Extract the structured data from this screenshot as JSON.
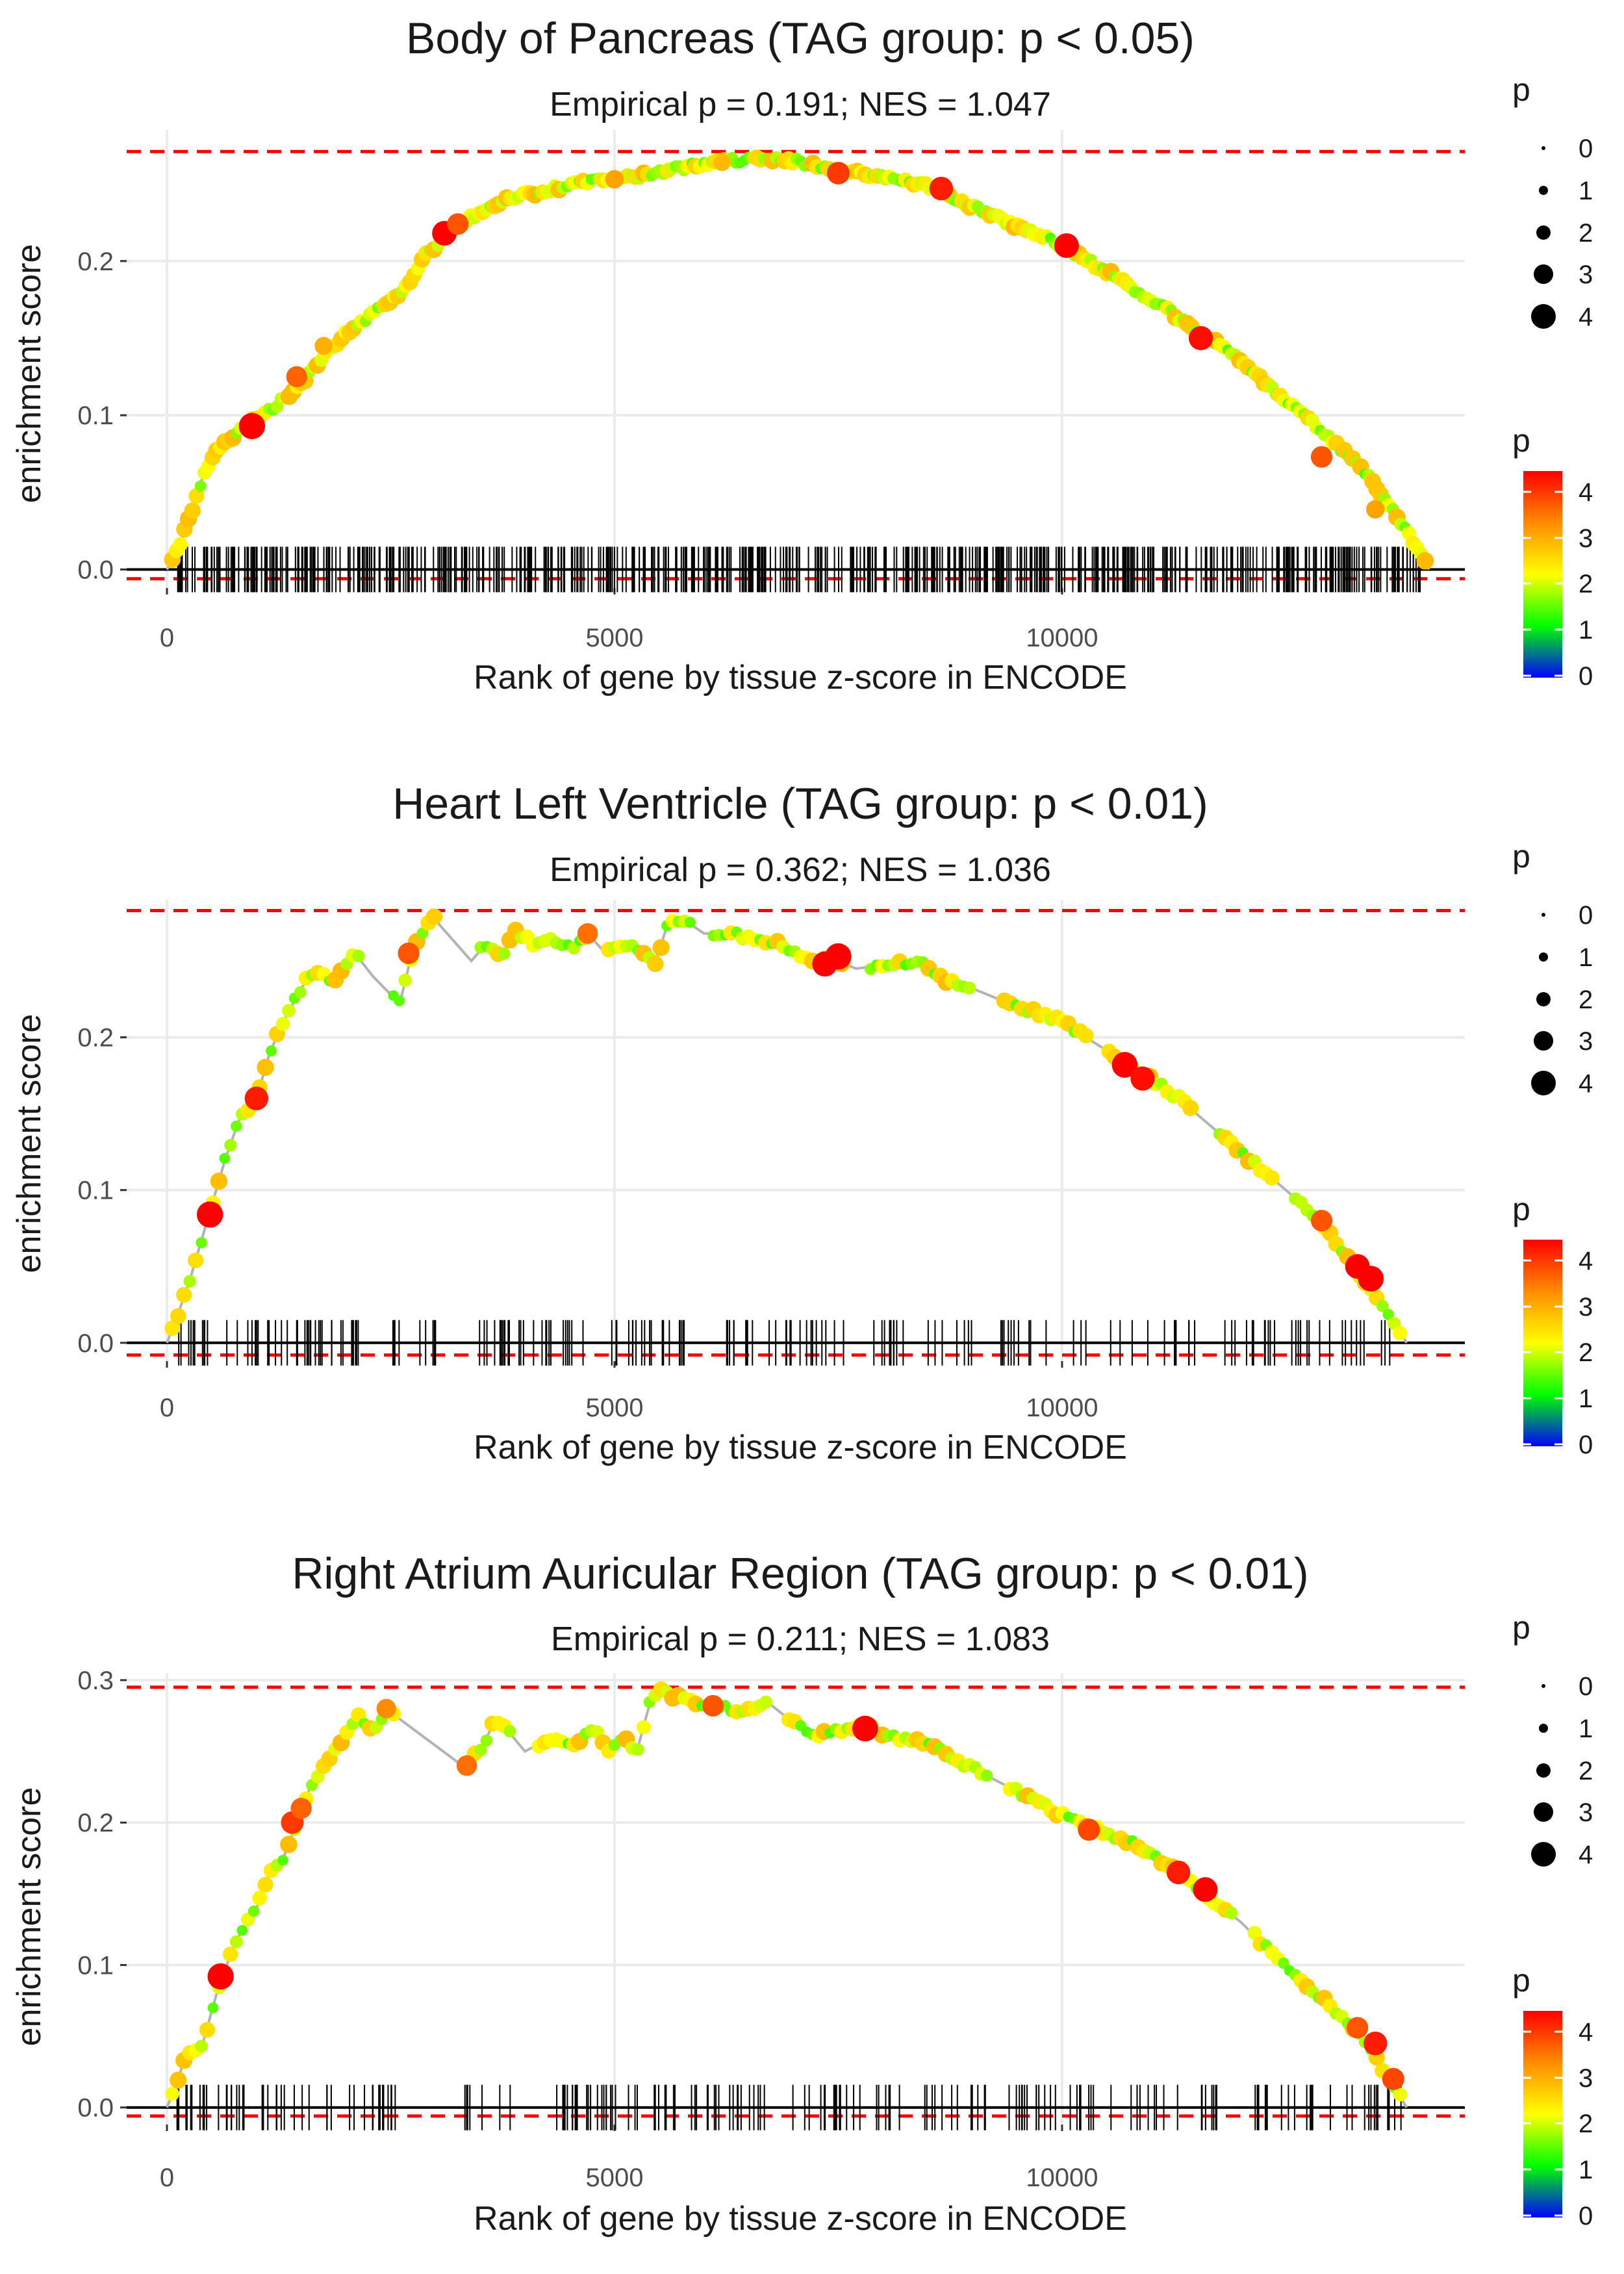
{
  "chart_data": [
    {
      "type": "line",
      "title": "Body of Pancreas (TAG group: p < 0.05)",
      "subtitle": "Empirical p = 0.191; NES = 1.047",
      "xlabel": "Rank of gene by tissue z-score in ENCODE",
      "ylabel": "enrichment score",
      "xlim": [
        -450,
        14500
      ],
      "ylim": [
        -0.012,
        0.285
      ],
      "xticks": [
        0,
        5000,
        10000
      ],
      "xtick_labels": [
        "0",
        "5000",
        "10000"
      ],
      "yticks": [
        0.0,
        0.1,
        0.2
      ],
      "ytick_labels": [
        "0.0",
        "0.1",
        "0.2"
      ],
      "dashed_lines": [
        0.271,
        -0.006
      ],
      "density": "dense",
      "hit_range": [
        100,
        14000
      ],
      "gap_ranges": [],
      "curve": [
        [
          0,
          0.0
        ],
        [
          100,
          0.01
        ],
        [
          200,
          0.025
        ],
        [
          400,
          0.06
        ],
        [
          600,
          0.08
        ],
        [
          900,
          0.093
        ],
        [
          1200,
          0.105
        ],
        [
          1500,
          0.12
        ],
        [
          1800,
          0.142
        ],
        [
          2100,
          0.158
        ],
        [
          2400,
          0.17
        ],
        [
          2700,
          0.185
        ],
        [
          2900,
          0.205
        ],
        [
          3200,
          0.22
        ],
        [
          3500,
          0.232
        ],
        [
          3800,
          0.24
        ],
        [
          4200,
          0.245
        ],
        [
          4600,
          0.25
        ],
        [
          5000,
          0.253
        ],
        [
          5500,
          0.258
        ],
        [
          6000,
          0.263
        ],
        [
          6500,
          0.266
        ],
        [
          7000,
          0.265
        ],
        [
          7500,
          0.258
        ],
        [
          8000,
          0.255
        ],
        [
          8600,
          0.247
        ],
        [
          9000,
          0.235
        ],
        [
          9500,
          0.222
        ],
        [
          10000,
          0.21
        ],
        [
          10500,
          0.193
        ],
        [
          11000,
          0.175
        ],
        [
          11500,
          0.155
        ],
        [
          12000,
          0.135
        ],
        [
          12500,
          0.11
        ],
        [
          13000,
          0.085
        ],
        [
          13500,
          0.055
        ],
        [
          13900,
          0.02
        ],
        [
          14100,
          0.0
        ]
      ],
      "highlights": [
        [
          950,
          0.093,
          4.3
        ],
        [
          1450,
          0.125,
          3.3
        ],
        [
          1750,
          0.145,
          2.7
        ],
        [
          3100,
          0.218,
          4.0
        ],
        [
          3250,
          0.224,
          3.4
        ],
        [
          5000,
          0.253,
          2.8
        ],
        [
          6200,
          0.264,
          2.6
        ],
        [
          7500,
          0.257,
          3.6
        ],
        [
          8650,
          0.247,
          3.8
        ],
        [
          10050,
          0.21,
          4.0
        ],
        [
          11550,
          0.15,
          3.9
        ],
        [
          12900,
          0.073,
          3.4
        ],
        [
          13500,
          0.039,
          2.8
        ]
      ],
      "point_spacing": 45,
      "size_legend": {
        "title": "p",
        "labels": [
          "0",
          "1",
          "2",
          "3",
          "4"
        ]
      },
      "color_legend": {
        "title": "p",
        "labels": [
          "0",
          "1",
          "2",
          "3",
          "4"
        ]
      }
    },
    {
      "type": "line",
      "title": "Heart Left Ventricle (TAG group: p < 0.01)",
      "subtitle": "Empirical p = 0.362; NES = 1.036",
      "xlabel": "Rank of gene by tissue z-score in ENCODE",
      "ylabel": "enrichment score",
      "xlim": [
        -450,
        14500
      ],
      "ylim": [
        -0.012,
        0.29
      ],
      "xticks": [
        0,
        5000,
        10000
      ],
      "xtick_labels": [
        "0",
        "5000",
        "10000"
      ],
      "yticks": [
        0.0,
        0.1,
        0.2
      ],
      "ytick_labels": [
        "0.0",
        "0.1",
        "0.2"
      ],
      "dashed_lines": [
        0.283,
        -0.008
      ],
      "density": "sparse",
      "hit_range": [
        100,
        13700
      ],
      "gap_ranges": [
        [
          2150,
          2500
        ],
        [
          3050,
          3450
        ],
        [
          4700,
          4900
        ],
        [
          5900,
          6100
        ],
        [
          7600,
          7800
        ],
        [
          9000,
          9300
        ],
        [
          10300,
          10500
        ],
        [
          11500,
          11700
        ],
        [
          12400,
          12550
        ]
      ],
      "curve": [
        [
          0,
          0.0
        ],
        [
          100,
          0.015
        ],
        [
          250,
          0.04
        ],
        [
          450,
          0.08
        ],
        [
          650,
          0.12
        ],
        [
          800,
          0.145
        ],
        [
          1000,
          0.16
        ],
        [
          1150,
          0.19
        ],
        [
          1300,
          0.21
        ],
        [
          1500,
          0.232
        ],
        [
          1650,
          0.245
        ],
        [
          1850,
          0.235
        ],
        [
          2100,
          0.255
        ],
        [
          2300,
          0.24
        ],
        [
          2600,
          0.222
        ],
        [
          2750,
          0.258
        ],
        [
          2950,
          0.28
        ],
        [
          3400,
          0.25
        ],
        [
          3550,
          0.26
        ],
        [
          3750,
          0.255
        ],
        [
          3900,
          0.27
        ],
        [
          4100,
          0.26
        ],
        [
          4300,
          0.265
        ],
        [
          4500,
          0.258
        ],
        [
          4700,
          0.268
        ],
        [
          4900,
          0.255
        ],
        [
          5100,
          0.262
        ],
        [
          5300,
          0.255
        ],
        [
          5450,
          0.248
        ],
        [
          5600,
          0.275
        ],
        [
          5800,
          0.276
        ],
        [
          6000,
          0.268
        ],
        [
          6300,
          0.268
        ],
        [
          6600,
          0.264
        ],
        [
          6900,
          0.26
        ],
        [
          7200,
          0.248
        ],
        [
          7400,
          0.252
        ],
        [
          7700,
          0.245
        ],
        [
          8100,
          0.248
        ],
        [
          8400,
          0.25
        ],
        [
          8600,
          0.24
        ],
        [
          9000,
          0.232
        ],
        [
          9500,
          0.22
        ],
        [
          10000,
          0.21
        ],
        [
          10400,
          0.195
        ],
        [
          10800,
          0.18
        ],
        [
          11200,
          0.165
        ],
        [
          11600,
          0.145
        ],
        [
          12000,
          0.125
        ],
        [
          12400,
          0.105
        ],
        [
          12800,
          0.085
        ],
        [
          13200,
          0.055
        ],
        [
          13500,
          0.03
        ],
        [
          13700,
          0.015
        ],
        [
          13850,
          0.0
        ]
      ],
      "highlights": [
        [
          480,
          0.084,
          4.3
        ],
        [
          1000,
          0.16,
          3.8
        ],
        [
          2700,
          0.255,
          3.4
        ],
        [
          4700,
          0.268,
          3.2
        ],
        [
          7350,
          0.248,
          4.1
        ],
        [
          7500,
          0.253,
          4.3
        ],
        [
          10700,
          0.182,
          4.2
        ],
        [
          10900,
          0.173,
          3.9
        ],
        [
          12900,
          0.08,
          3.4
        ],
        [
          13300,
          0.05,
          4.0
        ],
        [
          13450,
          0.042,
          4.2
        ]
      ],
      "point_spacing": 65,
      "size_legend": {
        "title": "p",
        "labels": [
          "0",
          "1",
          "2",
          "3",
          "4"
        ]
      },
      "color_legend": {
        "title": "p",
        "labels": [
          "0",
          "1",
          "2",
          "3",
          "4"
        ]
      }
    },
    {
      "type": "line",
      "title": "Right Atrium Auricular Region (TAG group: p < 0.01)",
      "subtitle": "Empirical p = 0.211; NES = 1.083",
      "xlabel": "Rank of gene by tissue z-score in ENCODE",
      "ylabel": "enrichment score",
      "xlim": [
        -450,
        14500
      ],
      "ylim": [
        -0.012,
        0.305
      ],
      "xticks": [
        0,
        5000,
        10000
      ],
      "xtick_labels": [
        "0",
        "5000",
        "10000"
      ],
      "yticks": [
        0.0,
        0.1,
        0.2,
        0.3
      ],
      "ytick_labels": [
        "0.0",
        "0.1",
        "0.2",
        "0.3"
      ],
      "dashed_lines": [
        0.295,
        -0.006
      ],
      "density": "sparse",
      "hit_range": [
        100,
        13800
      ],
      "gap_ranges": [
        [
          2550,
          3300
        ],
        [
          3850,
          4100
        ],
        [
          6700,
          6900
        ],
        [
          9200,
          9400
        ],
        [
          11900,
          12100
        ]
      ],
      "curve": [
        [
          0,
          0.0
        ],
        [
          100,
          0.015
        ],
        [
          200,
          0.035
        ],
        [
          400,
          0.045
        ],
        [
          600,
          0.09
        ],
        [
          800,
          0.12
        ],
        [
          1000,
          0.14
        ],
        [
          1150,
          0.165
        ],
        [
          1300,
          0.175
        ],
        [
          1450,
          0.2
        ],
        [
          1600,
          0.225
        ],
        [
          1800,
          0.245
        ],
        [
          2000,
          0.262
        ],
        [
          2150,
          0.275
        ],
        [
          2300,
          0.262
        ],
        [
          2450,
          0.28
        ],
        [
          2550,
          0.275
        ],
        [
          3300,
          0.24
        ],
        [
          3500,
          0.25
        ],
        [
          3650,
          0.27
        ],
        [
          3800,
          0.265
        ],
        [
          4000,
          0.25
        ],
        [
          4300,
          0.26
        ],
        [
          4500,
          0.255
        ],
        [
          4800,
          0.265
        ],
        [
          4950,
          0.25
        ],
        [
          5100,
          0.26
        ],
        [
          5250,
          0.25
        ],
        [
          5400,
          0.285
        ],
        [
          5500,
          0.293
        ],
        [
          5700,
          0.288
        ],
        [
          6100,
          0.282
        ],
        [
          6500,
          0.278
        ],
        [
          6700,
          0.285
        ],
        [
          6900,
          0.275
        ],
        [
          7200,
          0.262
        ],
        [
          7600,
          0.265
        ],
        [
          7800,
          0.268
        ],
        [
          8100,
          0.26
        ],
        [
          8500,
          0.255
        ],
        [
          9000,
          0.238
        ],
        [
          9500,
          0.222
        ],
        [
          10000,
          0.205
        ],
        [
          10400,
          0.195
        ],
        [
          10800,
          0.185
        ],
        [
          11200,
          0.17
        ],
        [
          11600,
          0.15
        ],
        [
          12000,
          0.13
        ],
        [
          12400,
          0.105
        ],
        [
          12800,
          0.082
        ],
        [
          13200,
          0.06
        ],
        [
          13500,
          0.035
        ],
        [
          13750,
          0.01
        ],
        [
          13850,
          0.0
        ]
      ],
      "highlights": [
        [
          600,
          0.092,
          4.3
        ],
        [
          1400,
          0.2,
          3.6
        ],
        [
          1500,
          0.21,
          3.3
        ],
        [
          2450,
          0.28,
          3.0
        ],
        [
          3350,
          0.24,
          3.2
        ],
        [
          6100,
          0.282,
          3.4
        ],
        [
          7800,
          0.266,
          4.2
        ],
        [
          10300,
          0.195,
          3.5
        ],
        [
          11300,
          0.165,
          3.8
        ],
        [
          11600,
          0.153,
          4.0
        ],
        [
          13300,
          0.056,
          3.4
        ],
        [
          13500,
          0.045,
          3.8
        ],
        [
          13700,
          0.02,
          3.5
        ]
      ],
      "point_spacing": 65,
      "size_legend": {
        "title": "p",
        "labels": [
          "0",
          "1",
          "2",
          "3",
          "4"
        ]
      },
      "color_legend": {
        "title": "p",
        "labels": [
          "0",
          "1",
          "2",
          "3",
          "4"
        ]
      }
    }
  ],
  "colors": {
    "curve_line": "#b3b3b3",
    "dashed": "#ff0000",
    "grid": "#ebebeb",
    "axis_line": "#000000",
    "tick_mark": "#333333",
    "gradient": [
      "#0000ff",
      "#00ff00",
      "#ffff00",
      "#ff8c00",
      "#ff0000"
    ]
  }
}
